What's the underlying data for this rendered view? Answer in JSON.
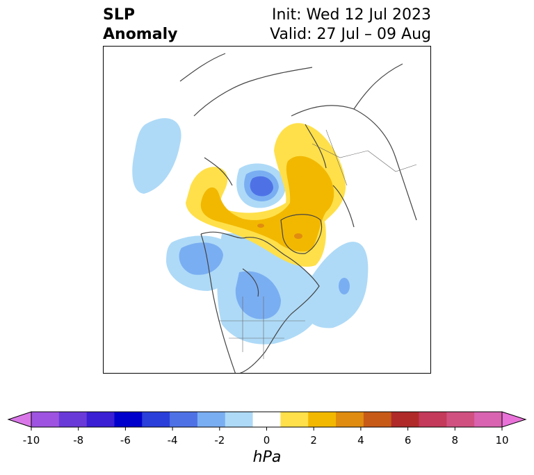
{
  "title": {
    "left_line1": "SLP",
    "left_line2": "Anomaly",
    "init": "Init: Wed 12 Jul 2023",
    "valid": "Valid: 27 Jul – 09 Aug"
  },
  "colorbar": {
    "units": "hPa",
    "ticks": [
      "-10",
      "-8",
      "-6",
      "-4",
      "-2",
      "0",
      "2",
      "4",
      "6",
      "8",
      "10"
    ],
    "colors": [
      "#d977e8",
      "#9e54e0",
      "#6a3ad9",
      "#3a1fd4",
      "#0000cc",
      "#2a3fd9",
      "#4e72e6",
      "#7aaef2",
      "#aedaf7",
      "#ffffff",
      "#ffe04a",
      "#f2b800",
      "#e08c10",
      "#c85a18",
      "#b02a2a",
      "#c43a5a",
      "#d05080",
      "#d963b0",
      "#e872d8"
    ],
    "extend": "both"
  },
  "map": {
    "projection": "polar stereographic (Northern Hemisphere)",
    "variable": "sea level pressure anomaly"
  }
}
